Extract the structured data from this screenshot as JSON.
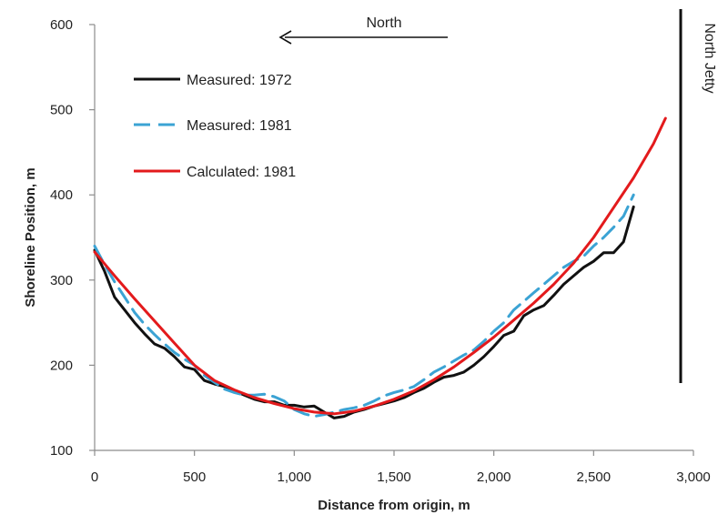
{
  "chart_data": {
    "type": "line",
    "title": "",
    "xlabel": "Distance from origin, m",
    "ylabel": "Shoreline Position, m",
    "xlim": [
      0,
      3000
    ],
    "ylim": [
      100,
      600
    ],
    "x_ticks": [
      0,
      500,
      1000,
      1500,
      2000,
      2500,
      3000
    ],
    "x_tick_labels": [
      "0",
      "500",
      "1,000",
      "1,500",
      "2,000",
      "2,500",
      "3,000"
    ],
    "y_ticks": [
      100,
      200,
      300,
      400,
      500,
      600
    ],
    "y_tick_labels": [
      "100",
      "200",
      "300",
      "400",
      "500",
      "600"
    ],
    "grid": false,
    "legend_position": "top-left",
    "series": [
      {
        "name": "Measured: 1972",
        "color": "#111111",
        "style": "solid",
        "x": [
          0,
          50,
          100,
          150,
          200,
          250,
          300,
          350,
          400,
          450,
          500,
          550,
          600,
          650,
          700,
          750,
          800,
          850,
          900,
          950,
          1000,
          1050,
          1100,
          1150,
          1200,
          1250,
          1300,
          1350,
          1400,
          1450,
          1500,
          1550,
          1600,
          1650,
          1700,
          1750,
          1800,
          1850,
          1900,
          1950,
          2000,
          2050,
          2100,
          2150,
          2200,
          2250,
          2300,
          2350,
          2400,
          2450,
          2500,
          2550,
          2600,
          2650,
          2700
        ],
        "y": [
          335,
          310,
          280,
          265,
          250,
          237,
          225,
          220,
          210,
          198,
          195,
          182,
          178,
          175,
          170,
          165,
          160,
          157,
          157,
          153,
          153,
          151,
          152,
          145,
          138,
          140,
          145,
          148,
          152,
          155,
          158,
          162,
          168,
          173,
          180,
          186,
          188,
          192,
          200,
          210,
          222,
          235,
          240,
          258,
          265,
          270,
          282,
          295,
          305,
          315,
          322,
          332,
          332,
          345,
          386
        ]
      },
      {
        "name": "Measured: 1981",
        "color": "#3ba3d4",
        "style": "dashed",
        "x": [
          0,
          50,
          100,
          150,
          200,
          250,
          300,
          350,
          400,
          450,
          500,
          550,
          600,
          650,
          700,
          750,
          800,
          850,
          900,
          950,
          1000,
          1050,
          1100,
          1150,
          1200,
          1250,
          1300,
          1350,
          1400,
          1450,
          1500,
          1550,
          1600,
          1650,
          1700,
          1750,
          1800,
          1850,
          1900,
          1950,
          2000,
          2050,
          2100,
          2150,
          2200,
          2250,
          2300,
          2350,
          2400,
          2450,
          2500,
          2550,
          2600,
          2650,
          2700
        ],
        "y": [
          340,
          318,
          298,
          280,
          262,
          248,
          236,
          225,
          215,
          207,
          200,
          188,
          180,
          172,
          168,
          165,
          165,
          166,
          163,
          158,
          148,
          143,
          140,
          142,
          145,
          148,
          150,
          153,
          158,
          164,
          168,
          171,
          175,
          183,
          192,
          198,
          205,
          212,
          218,
          228,
          240,
          250,
          265,
          275,
          285,
          295,
          305,
          315,
          322,
          328,
          340,
          350,
          362,
          375,
          400
        ]
      },
      {
        "name": "Calculated: 1981",
        "color": "#e31a1c",
        "style": "solid",
        "x": [
          0,
          100,
          200,
          300,
          400,
          500,
          600,
          700,
          800,
          900,
          1000,
          1100,
          1200,
          1300,
          1400,
          1500,
          1600,
          1700,
          1800,
          1900,
          2000,
          2100,
          2200,
          2300,
          2400,
          2500,
          2600,
          2700,
          2800,
          2860
        ],
        "y": [
          333,
          305,
          278,
          252,
          226,
          200,
          182,
          171,
          162,
          155,
          149,
          145,
          143,
          146,
          152,
          160,
          170,
          183,
          198,
          215,
          233,
          253,
          273,
          295,
          320,
          350,
          385,
          420,
          460,
          490
        ]
      }
    ],
    "annotations": [
      {
        "text": "North",
        "arrow": "left"
      },
      {
        "text": "North Jetty",
        "marker": "vertical line"
      }
    ]
  },
  "colors": {
    "axis": "#8c8c8c",
    "text": "#222222",
    "jetty": "#111111",
    "arrow": "#111111"
  }
}
